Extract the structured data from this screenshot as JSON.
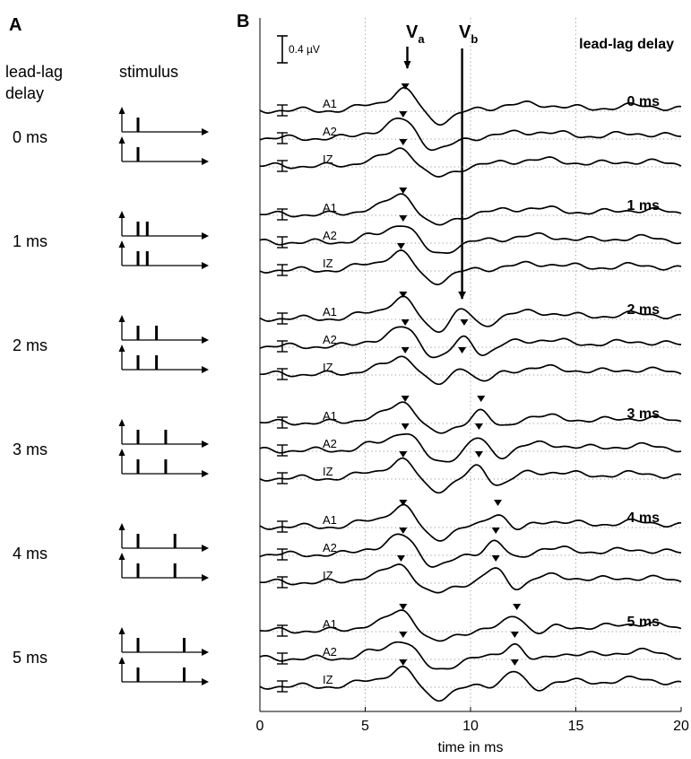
{
  "panels": {
    "a_letter": "A",
    "b_letter": "B"
  },
  "panel_a": {
    "col_delay_line1": "lead-lag",
    "col_delay_line2": "delay",
    "col_stimulus": "stimulus",
    "delays": [
      "0 ms",
      "1 ms",
      "2 ms",
      "3 ms",
      "4 ms",
      "5 ms"
    ],
    "delay_values_ms": [
      0,
      1,
      2,
      3,
      4,
      5
    ]
  },
  "panel_b": {
    "scale_bar_label": "0.4 µV",
    "legend_title": "lead-lag delay",
    "peak_a": {
      "name": "V",
      "sub": "a",
      "time_ms": 7.0
    },
    "peak_b": {
      "name": "V",
      "sub": "b",
      "time_ms": 9.6
    },
    "trace_labels": [
      "A1",
      "A2",
      "IZ"
    ],
    "group_labels": [
      "0 ms",
      "1 ms",
      "2 ms",
      "3 ms",
      "4 ms",
      "5 ms"
    ]
  },
  "chart_data": {
    "type": "line",
    "xlabel": "time in ms",
    "xlim": [
      0,
      20
    ],
    "xticks": [
      "0",
      "5",
      "10",
      "15",
      "20"
    ],
    "grid": "vertical dotted at 5, 10, 15 ms",
    "groups": [
      {
        "delay_ms": 0,
        "series": [
          {
            "name": "A1",
            "va_ms": 6.9,
            "vb_ms": null
          },
          {
            "name": "A2",
            "va_ms": 6.8,
            "vb_ms": null
          },
          {
            "name": "IZ",
            "va_ms": 6.8,
            "vb_ms": null
          }
        ]
      },
      {
        "delay_ms": 1,
        "series": [
          {
            "name": "A1",
            "va_ms": 6.8,
            "vb_ms": null
          },
          {
            "name": "A2",
            "va_ms": 6.8,
            "vb_ms": null
          },
          {
            "name": "IZ",
            "va_ms": 6.7,
            "vb_ms": null
          }
        ]
      },
      {
        "delay_ms": 2,
        "series": [
          {
            "name": "A1",
            "va_ms": 6.8,
            "vb_ms": 9.6
          },
          {
            "name": "A2",
            "va_ms": 6.9,
            "vb_ms": 9.7
          },
          {
            "name": "IZ",
            "va_ms": 6.9,
            "vb_ms": 9.6
          }
        ]
      },
      {
        "delay_ms": 3,
        "series": [
          {
            "name": "A1",
            "va_ms": 6.9,
            "vb_ms": 10.5
          },
          {
            "name": "A2",
            "va_ms": 6.9,
            "vb_ms": 10.4
          },
          {
            "name": "IZ",
            "va_ms": 6.8,
            "vb_ms": 10.4
          }
        ]
      },
      {
        "delay_ms": 4,
        "series": [
          {
            "name": "A1",
            "va_ms": 6.8,
            "vb_ms": 11.3
          },
          {
            "name": "A2",
            "va_ms": 6.8,
            "vb_ms": 11.2
          },
          {
            "name": "IZ",
            "va_ms": 6.7,
            "vb_ms": 11.2
          }
        ]
      },
      {
        "delay_ms": 5,
        "series": [
          {
            "name": "A1",
            "va_ms": 6.8,
            "vb_ms": 12.2
          },
          {
            "name": "A2",
            "va_ms": 6.8,
            "vb_ms": 12.1
          },
          {
            "name": "IZ",
            "va_ms": 6.8,
            "vb_ms": 12.1
          }
        ]
      }
    ]
  }
}
